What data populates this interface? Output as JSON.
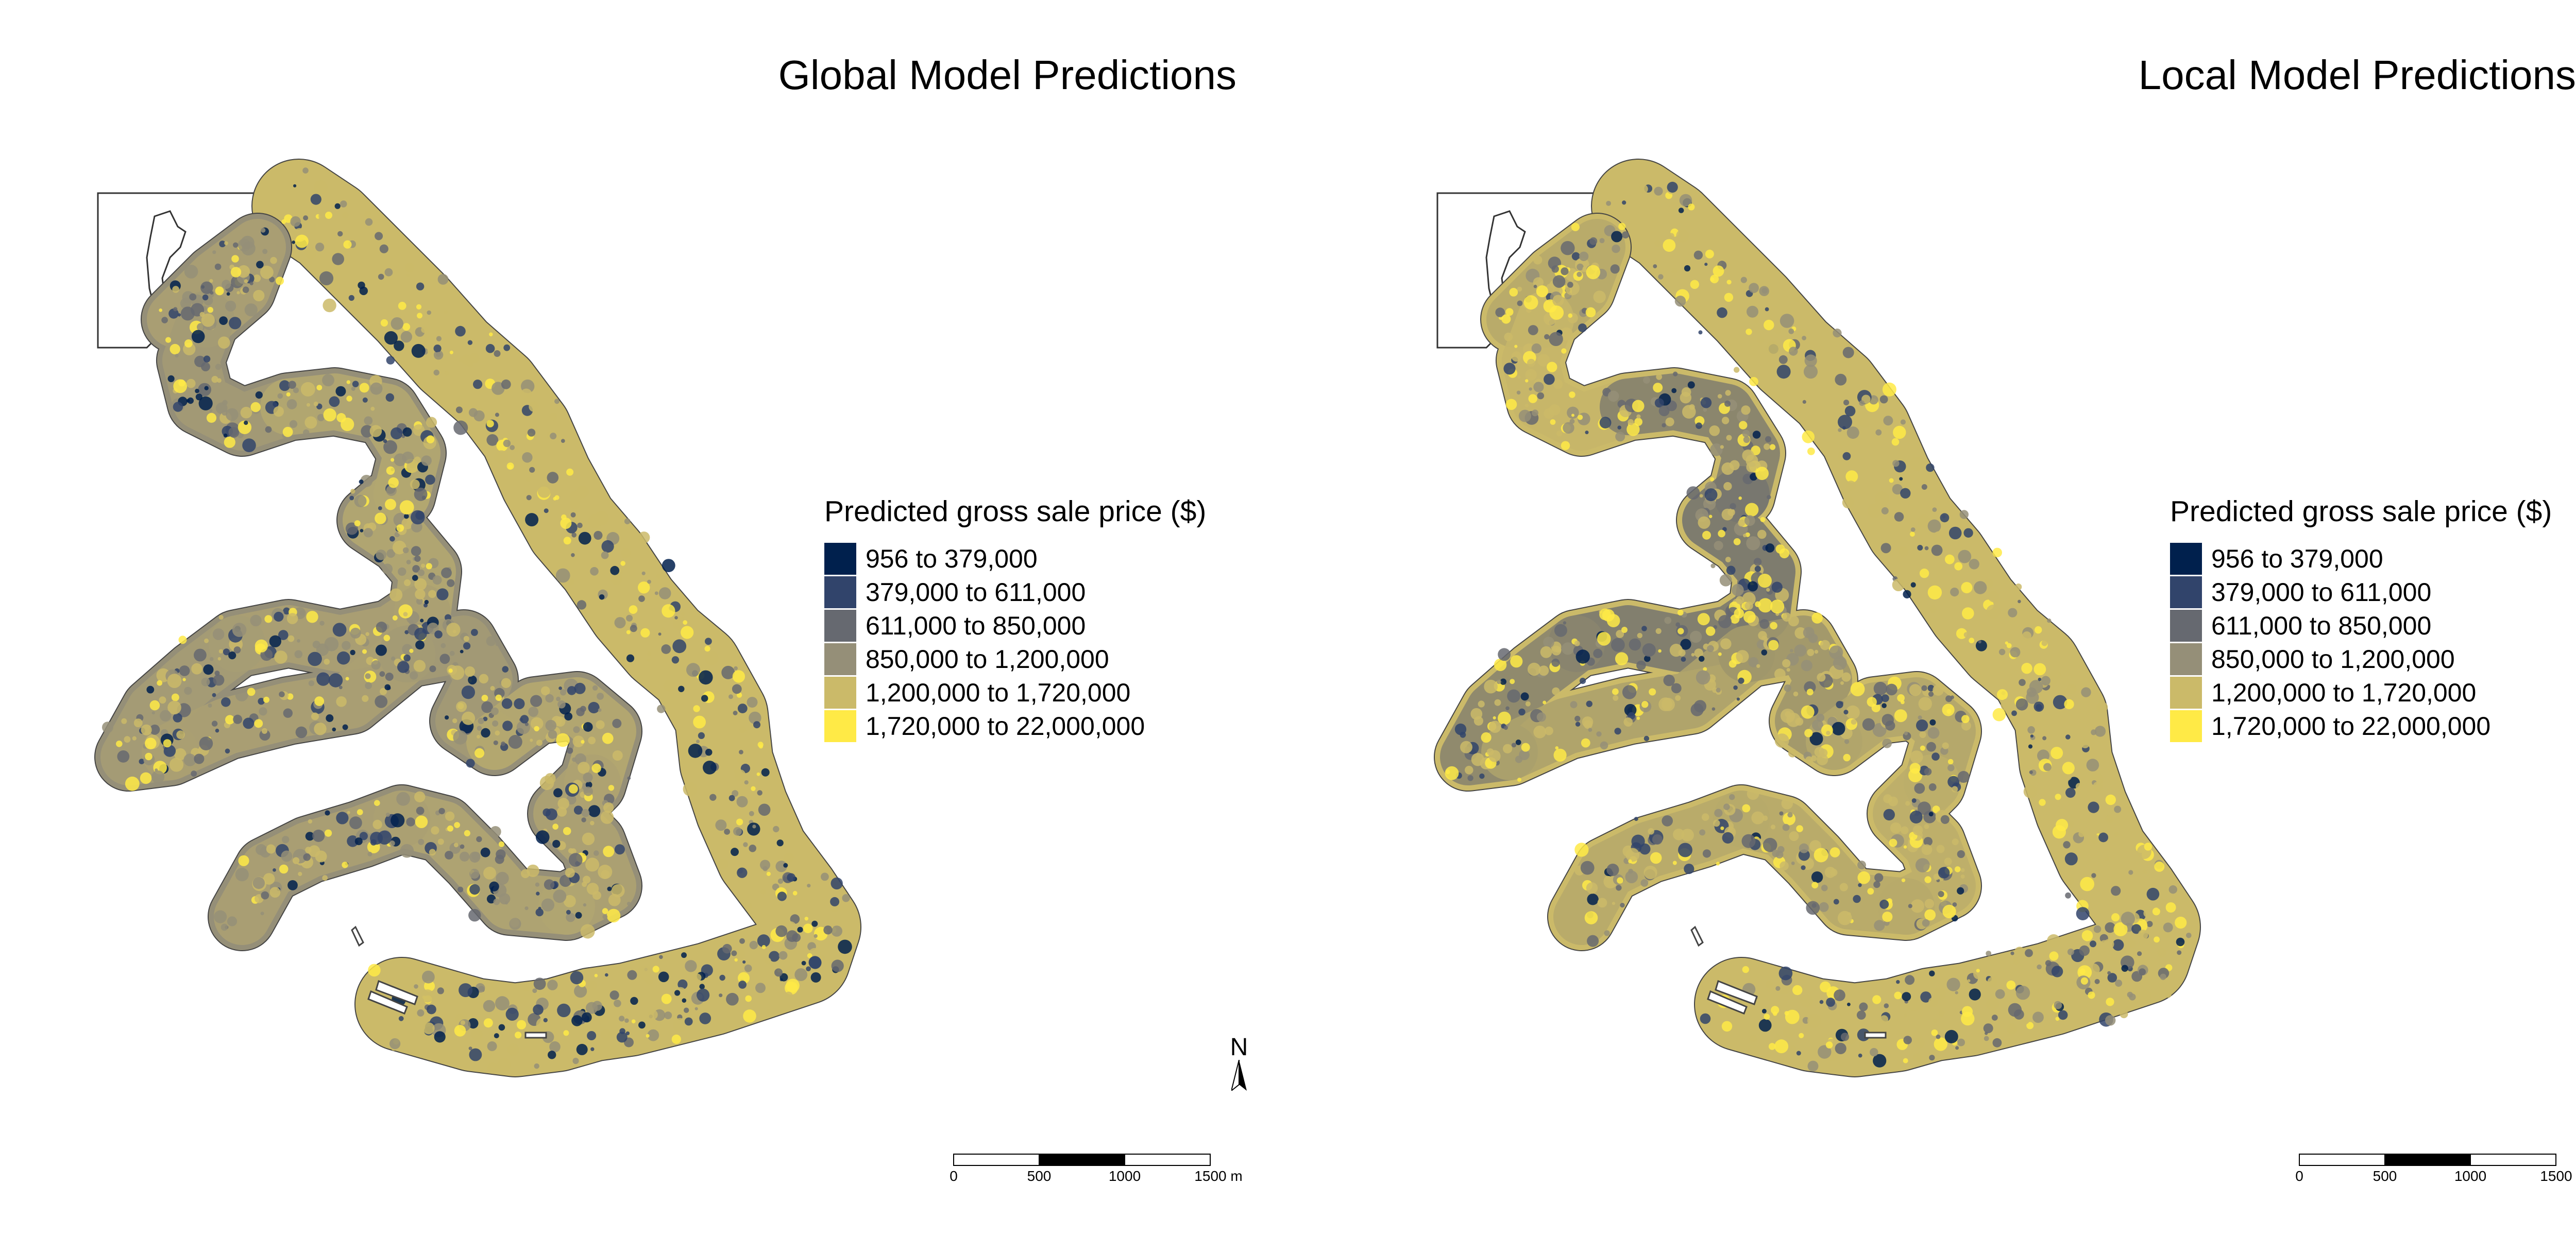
{
  "maps": [
    {
      "id": "global",
      "title": "Global Model Predictions",
      "blend": [
        0.4,
        0.25,
        0.55,
        0.55,
        0.4,
        0.3,
        0.4,
        0.25,
        0.6,
        0.45,
        0.5
      ]
    },
    {
      "id": "local",
      "title": "Local Model Predictions",
      "blend": [
        0.8,
        0.95,
        0.3,
        0.15,
        0.2,
        0.35,
        0.7,
        0.55,
        0.75,
        0.85,
        0.8
      ]
    }
  ],
  "legend": {
    "title": "Predicted gross sale price ($)",
    "classes": [
      {
        "label": "956 to 379,000",
        "color": "#00204d"
      },
      {
        "label": "379,000 to 611,000",
        "color": "#31446b"
      },
      {
        "label": "611,000 to 850,000",
        "color": "#666970"
      },
      {
        "label": "850,000 to 1,200,000",
        "color": "#958f78"
      },
      {
        "label": "1,200,000 to 1,720,000",
        "color": "#cbba69"
      },
      {
        "label": "1,720,000 to 22,000,000",
        "color": "#ffea46"
      }
    ]
  },
  "north_arrow": {
    "label": "N"
  },
  "scale_bar": {
    "unit": "m",
    "ticks": [
      "0",
      "500",
      "1000",
      "1500 m"
    ]
  }
}
